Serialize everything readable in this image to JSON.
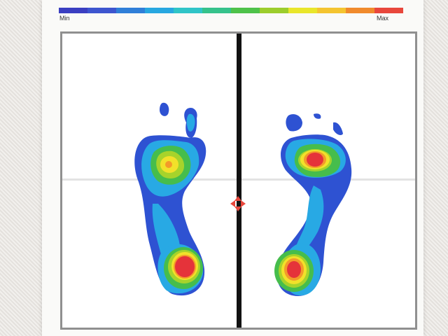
{
  "legend": {
    "min_label": "Min",
    "max_label": "Max",
    "colors": [
      "#3b3fc1",
      "#3d55cf",
      "#2f7fd8",
      "#27a7e0",
      "#2fc4c7",
      "#35c28b",
      "#4ec24a",
      "#9ccd2c",
      "#e9e62a",
      "#f4c430",
      "#f08a2c",
      "#e8473c"
    ]
  },
  "heatmap_colors": {
    "blue": "#2e52d2",
    "sky": "#28a9e4",
    "cyan": "#39c6c1",
    "green": "#46bd4c",
    "lime": "#a7d32b",
    "yellow": "#f2e12a",
    "orange": "#f39a2a",
    "red": "#e5333a"
  },
  "center_marker_color": "#e8473c"
}
